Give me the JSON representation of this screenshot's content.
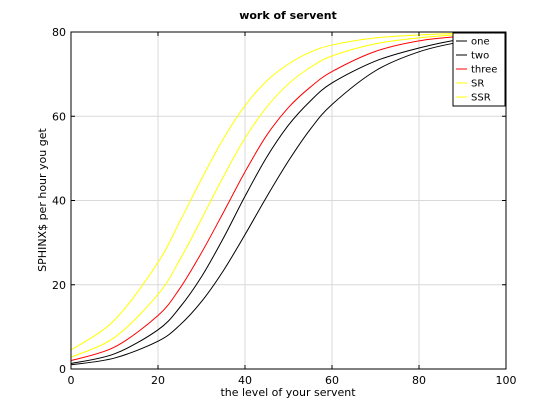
{
  "chart_data": {
    "type": "line",
    "title": "work of servent",
    "xlabel": "the level of your servent",
    "ylabel": "SPHINX$ per hour you get",
    "xlim": [
      0,
      100
    ],
    "ylim": [
      0,
      80
    ],
    "xticks": [
      "0",
      "20",
      "40",
      "60",
      "80",
      "100"
    ],
    "yticks": [
      "0",
      "20",
      "40",
      "60",
      "80"
    ],
    "grid": true,
    "legend_position": "top-right",
    "x": [
      0,
      10,
      20,
      25,
      30,
      35,
      40,
      45,
      50,
      55,
      60,
      70,
      80,
      90,
      100
    ],
    "series": [
      {
        "name": "one",
        "color": "#000000",
        "values": [
          1.0,
          2.6,
          6.6,
          10.4,
          16.0,
          23.3,
          31.9,
          40.9,
          49.4,
          56.9,
          62.8,
          70.8,
          75.3,
          77.7,
          78.8
        ]
      },
      {
        "name": "two",
        "color": "#000000",
        "values": [
          1.3,
          3.6,
          9.3,
          14.6,
          21.9,
          31.0,
          41.0,
          50.3,
          57.9,
          63.6,
          67.9,
          73.1,
          76.2,
          78.3,
          79.2
        ]
      },
      {
        "name": "three",
        "color": "#ff0000",
        "values": [
          2.0,
          5.2,
          12.7,
          19.1,
          27.6,
          37.1,
          46.8,
          55.5,
          62.1,
          66.9,
          70.6,
          75.4,
          77.9,
          79.0,
          79.6
        ]
      },
      {
        "name": "SR",
        "color": "#ffff00",
        "values": [
          2.8,
          7.5,
          17.7,
          25.9,
          35.6,
          45.6,
          54.8,
          62.2,
          67.7,
          71.6,
          74.3,
          77.2,
          78.6,
          79.4,
          79.8
        ]
      },
      {
        "name": "SSR",
        "color": "#ffff00",
        "values": [
          4.5,
          11.6,
          25.3,
          35.0,
          45.1,
          54.6,
          62.5,
          68.4,
          72.4,
          75.2,
          76.9,
          78.6,
          79.3,
          79.7,
          79.9
        ]
      }
    ]
  }
}
